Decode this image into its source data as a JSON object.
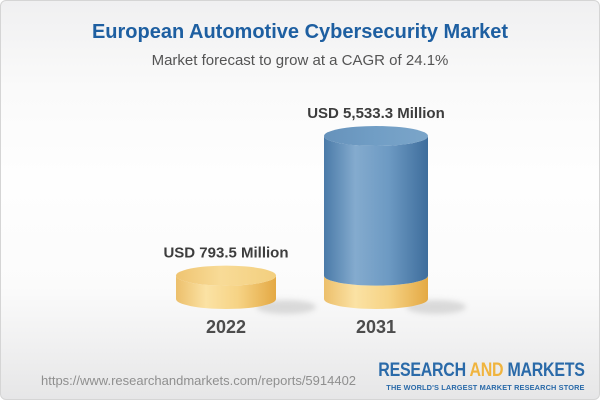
{
  "header": {
    "title": "European Automotive Cybersecurity Market",
    "subtitle": "Market forecast to grow at a CAGR of 24.1%"
  },
  "chart_data": {
    "type": "bar",
    "subtype": "3d-cylinder",
    "categories": [
      "2022",
      "2031"
    ],
    "values": [
      793.5,
      5533.3
    ],
    "value_labels": [
      "USD 793.5 Million",
      "USD 5,533.3 Million"
    ],
    "unit": "USD Million",
    "cagr_percent": 24.1,
    "title": "European Automotive Cybersecurity Market",
    "subtitle": "Market forecast to grow at a CAGR of 24.1%",
    "ylim": [
      0,
      5533.3
    ],
    "grid": false,
    "legend": false,
    "layout_note": "2031 cylinder is stacked: yellow base segment equals the 2022 value, blue segment is the growth",
    "colors": {
      "base_segment": "#f2c96f",
      "growth_segment": "#5f8fba",
      "label_text": "#3d3d3d",
      "category_text": "#4c4c4c"
    }
  },
  "footer": {
    "url": "https://www.researchandmarkets.com/reports/5914402",
    "logo": {
      "word1": "RESEARCH",
      "word2": "AND",
      "word3": "MARKETS",
      "tagline": "THE WORLD'S LARGEST MARKET RESEARCH STORE",
      "color_primary": "#2a6aa9",
      "color_accent": "#f0b43e"
    }
  },
  "theme": {
    "title_color": "#1e5fa1",
    "subtitle_color": "#545454",
    "url_color": "#8f8f8f",
    "background_top": "#f0f0f1",
    "background_bottom": "#e6e6e7"
  }
}
